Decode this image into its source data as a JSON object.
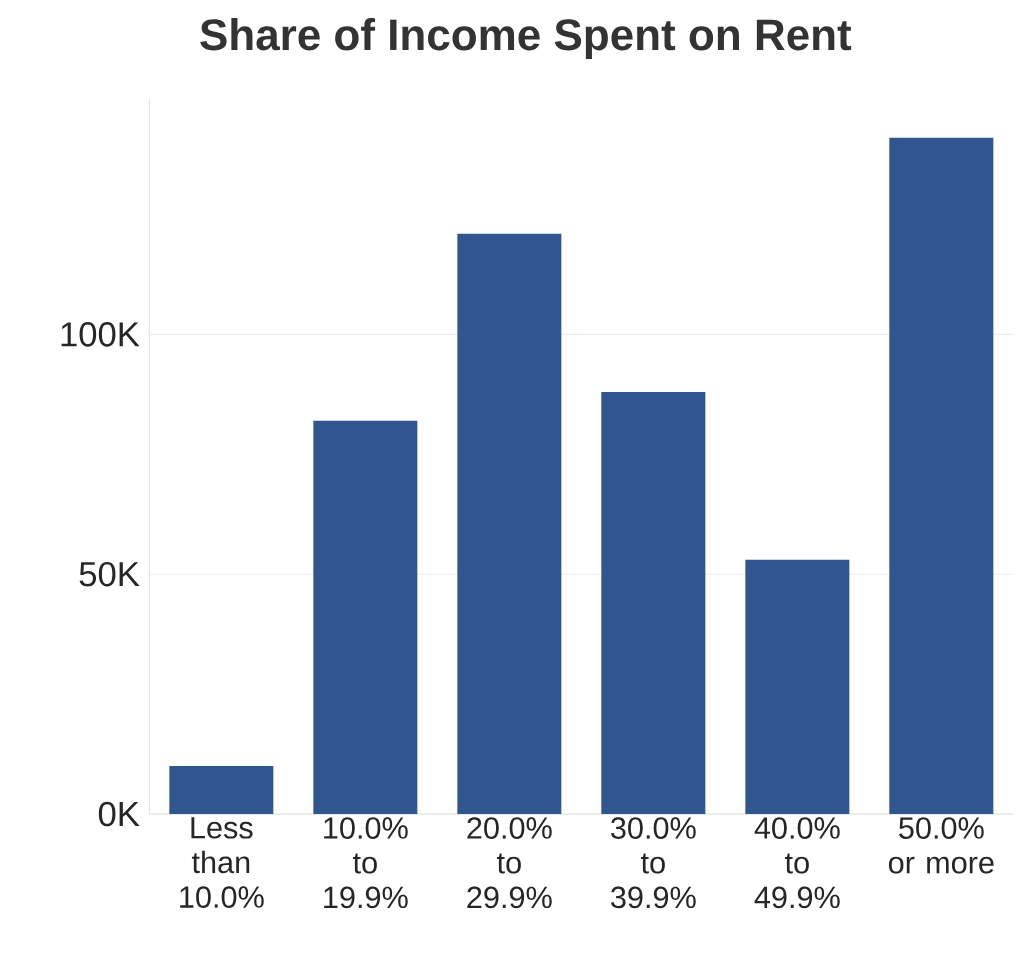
{
  "chart_data": {
    "type": "bar",
    "title": "Share of Income Spent on Rent",
    "categories": [
      "Less than 10.0%",
      "10.0% to 19.9%",
      "20.0% to 29.9%",
      "30.0% to 39.9%",
      "40.0% to 49.9%",
      "50.0% or more"
    ],
    "values": [
      10000,
      82000,
      121000,
      88000,
      53000,
      141000
    ],
    "color": "#30558f",
    "ylim": [
      0,
      149000
    ],
    "yticks": [
      {
        "value": 0,
        "label": "0K"
      },
      {
        "value": 50000,
        "label": "50K"
      },
      {
        "value": 100000,
        "label": "100K"
      }
    ],
    "grid": "y"
  }
}
